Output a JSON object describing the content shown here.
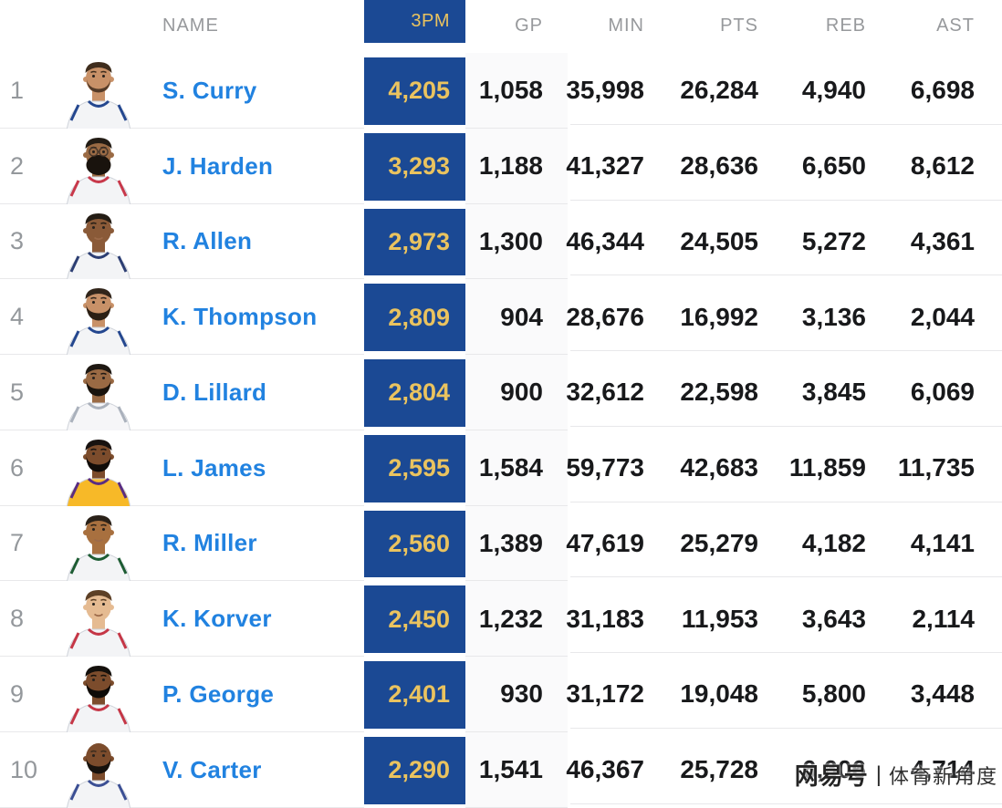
{
  "header": {
    "name_label": "NAME",
    "threes_label": "3PM",
    "gp_label": "GP",
    "min_label": "MIN",
    "pts_label": "PTS",
    "reb_label": "REB",
    "ast_label": "AST"
  },
  "players": [
    {
      "rank": "1",
      "name": "S. Curry",
      "threes": "4,205",
      "gp": "1,058",
      "min": "35,998",
      "pts": "26,284",
      "reb": "4,940",
      "ast": "6,698",
      "avatar": {
        "skin": "#c89168",
        "hair": "#3f2d1d",
        "hairstyle": "short",
        "beard": "stubble",
        "beard_color": "#4a3423",
        "jersey": "#f3f4f6",
        "trim": "#24478f",
        "glasses": false
      }
    },
    {
      "rank": "2",
      "name": "J. Harden",
      "threes": "3,293",
      "gp": "1,188",
      "min": "41,327",
      "pts": "28,636",
      "reb": "6,650",
      "ast": "8,612",
      "avatar": {
        "skin": "#9a6a44",
        "hair": "#221b14",
        "hairstyle": "short",
        "beard": "big",
        "beard_color": "#19130d",
        "jersey": "#f3f4f6",
        "trim": "#c8384a",
        "glasses": true
      }
    },
    {
      "rank": "3",
      "name": "R. Allen",
      "threes": "2,973",
      "gp": "1,300",
      "min": "46,344",
      "pts": "24,505",
      "reb": "5,272",
      "ast": "4,361",
      "avatar": {
        "skin": "#8a5a38",
        "hair": "#241d15",
        "hairstyle": "short",
        "beard": "none",
        "beard_color": "",
        "jersey": "#f3f4f6",
        "trim": "#2c3e73",
        "glasses": false
      }
    },
    {
      "rank": "4",
      "name": "K. Thompson",
      "threes": "2,809",
      "gp": "904",
      "min": "28,676",
      "pts": "16,992",
      "reb": "3,136",
      "ast": "2,044",
      "avatar": {
        "skin": "#c89168",
        "hair": "#31251a",
        "hairstyle": "short",
        "beard": "full",
        "beard_color": "#2b1f14",
        "jersey": "#f3f4f6",
        "trim": "#24478f",
        "glasses": false
      }
    },
    {
      "rank": "5",
      "name": "D. Lillard",
      "threes": "2,804",
      "gp": "900",
      "min": "32,612",
      "pts": "22,598",
      "reb": "3,845",
      "ast": "6,069",
      "avatar": {
        "skin": "#9a6a44",
        "hair": "#1e1812",
        "hairstyle": "short",
        "beard": "full",
        "beard_color": "#19130d",
        "jersey": "#f6f6f8",
        "trim": "#aab1bc",
        "glasses": false
      }
    },
    {
      "rank": "6",
      "name": "L. James",
      "threes": "2,595",
      "gp": "1,584",
      "min": "59,773",
      "pts": "42,683",
      "reb": "11,859",
      "ast": "11,735",
      "avatar": {
        "skin": "#7c4c2c",
        "hair": "#181210",
        "hairstyle": "short",
        "beard": "full",
        "beard_color": "#100c09",
        "jersey": "#f7b928",
        "trim": "#5a2d82",
        "glasses": false
      }
    },
    {
      "rank": "7",
      "name": "R. Miller",
      "threes": "2,560",
      "gp": "1,389",
      "min": "47,619",
      "pts": "25,279",
      "reb": "4,182",
      "ast": "4,141",
      "avatar": {
        "skin": "#a8703f",
        "hair": "#2a2118",
        "hairstyle": "short",
        "beard": "none",
        "beard_color": "",
        "jersey": "#f3f4f6",
        "trim": "#1d5c33",
        "glasses": false
      }
    },
    {
      "rank": "8",
      "name": "K. Korver",
      "threes": "2,450",
      "gp": "1,232",
      "min": "31,183",
      "pts": "11,953",
      "reb": "3,643",
      "ast": "2,114",
      "avatar": {
        "skin": "#e5bb92",
        "hair": "#5d4026",
        "hairstyle": "short",
        "beard": "none",
        "beard_color": "",
        "jersey": "#f3f4f6",
        "trim": "#c53646",
        "glasses": false
      }
    },
    {
      "rank": "9",
      "name": "P. George",
      "threes": "2,401",
      "gp": "930",
      "min": "31,172",
      "pts": "19,048",
      "reb": "5,800",
      "ast": "3,448",
      "avatar": {
        "skin": "#7c4c2c",
        "hair": "#14100c",
        "hairstyle": "short",
        "beard": "full",
        "beard_color": "#0e0b08",
        "jersey": "#f3f4f6",
        "trim": "#c53646",
        "glasses": false
      }
    },
    {
      "rank": "10",
      "name": "V. Carter",
      "threes": "2,290",
      "gp": "1,541",
      "min": "46,367",
      "pts": "25,728",
      "reb": "6,606",
      "ast": "4,714",
      "avatar": {
        "skin": "#7c4c2c",
        "hair": "",
        "hairstyle": "bald",
        "beard": "full",
        "beard_color": "#17120d",
        "jersey": "#f3f4f6",
        "trim": "#3b4f94",
        "glasses": false
      }
    }
  ],
  "watermark": {
    "brand": "网易号",
    "divider": "|",
    "label": "体育新角度"
  },
  "colors": {
    "accent_navy": "#1b4994",
    "accent_gold": "#eac35f",
    "name_blue": "#2182e0",
    "header_gray": "#97999c",
    "rank_gray": "#94989c",
    "value_black": "#18191b",
    "row_separator": "#e8e8ea",
    "gp_column_tint": "#fafafb"
  }
}
